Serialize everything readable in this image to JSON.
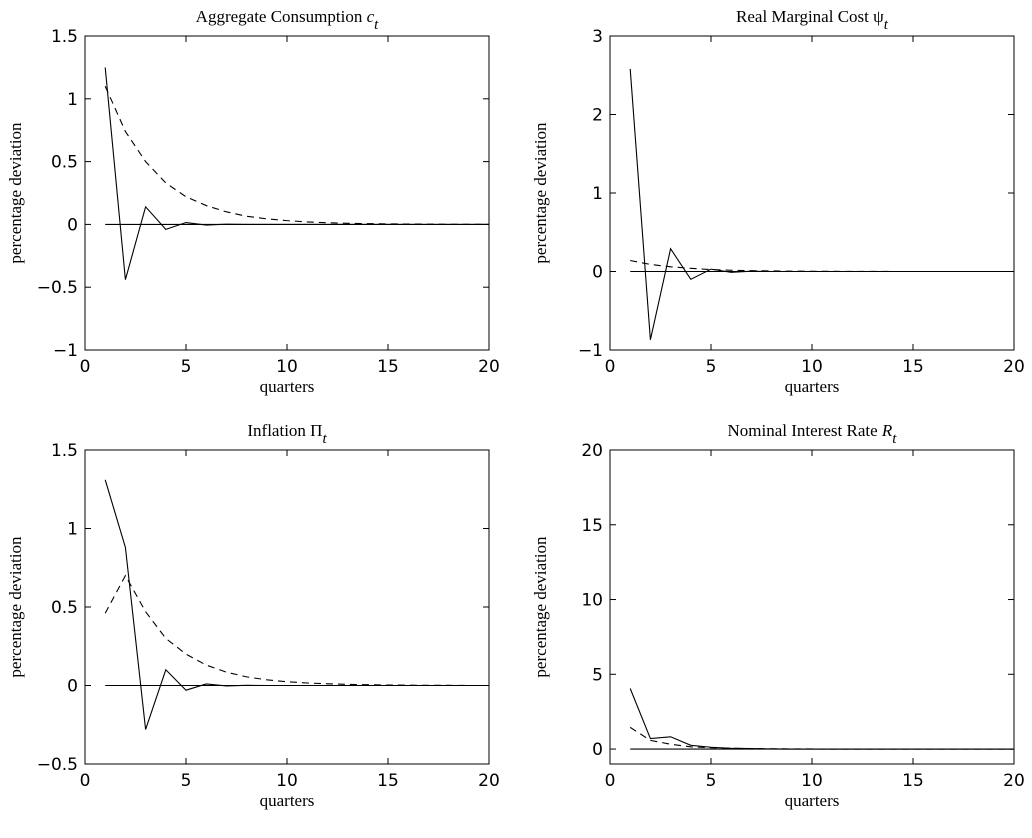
{
  "chart_data": [
    {
      "type": "line",
      "title": "Aggregate Consumption",
      "title_symbol": "c",
      "title_symbol_italic": true,
      "title_subscript": "t",
      "xlabel": "quarters",
      "ylabel": "percentage deviation",
      "xlim": [
        0,
        20
      ],
      "ylim": [
        -1,
        1.5
      ],
      "xticks": [
        "0",
        "5",
        "10",
        "15",
        "20"
      ],
      "yticks": [
        "−1",
        "−0.5",
        "0",
        "0.5",
        "1",
        "1.5"
      ],
      "grid": false,
      "x": [
        1,
        2,
        3,
        4,
        5,
        6,
        7,
        8,
        9,
        10,
        11,
        12,
        13,
        14,
        15,
        16,
        17,
        18,
        19,
        20
      ],
      "series": [
        {
          "style": "solid",
          "values": [
            1.25,
            -0.44,
            0.14,
            -0.04,
            0.015,
            -0.005,
            0.002,
            0,
            0,
            0,
            0,
            0,
            0,
            0,
            0,
            0,
            0,
            0,
            0,
            0
          ]
        },
        {
          "style": "dashed",
          "values": [
            1.1,
            0.74,
            0.5,
            0.33,
            0.22,
            0.15,
            0.1,
            0.065,
            0.044,
            0.03,
            0.02,
            0.013,
            0.009,
            0.006,
            0.004,
            0.003,
            0.002,
            0.001,
            0.001,
            0
          ]
        },
        {
          "style": "solid",
          "values": [
            0,
            0,
            0,
            0,
            0,
            0,
            0,
            0,
            0,
            0,
            0,
            0,
            0,
            0,
            0,
            0,
            0,
            0,
            0,
            0
          ]
        }
      ]
    },
    {
      "type": "line",
      "title": "Real Marginal Cost",
      "title_symbol": "ψ",
      "title_symbol_italic": false,
      "title_subscript": "t",
      "xlabel": "quarters",
      "ylabel": "percentage deviation",
      "xlim": [
        0,
        20
      ],
      "ylim": [
        -1,
        3
      ],
      "xticks": [
        "0",
        "5",
        "10",
        "15",
        "20"
      ],
      "yticks": [
        "−1",
        "0",
        "1",
        "2",
        "3"
      ],
      "grid": false,
      "x": [
        1,
        2,
        3,
        4,
        5,
        6,
        7,
        8,
        9,
        10,
        11,
        12,
        13,
        14,
        15,
        16,
        17,
        18,
        19,
        20
      ],
      "series": [
        {
          "style": "solid",
          "values": [
            2.58,
            -0.87,
            0.29,
            -0.1,
            0.03,
            -0.01,
            0.004,
            0,
            0,
            0,
            0,
            0,
            0,
            0,
            0,
            0,
            0,
            0,
            0,
            0
          ]
        },
        {
          "style": "dashed",
          "values": [
            0.14,
            0.09,
            0.06,
            0.04,
            0.025,
            0.016,
            0.01,
            0.007,
            0.004,
            0.003,
            0.002,
            0.001,
            0.001,
            0,
            0,
            0,
            0,
            0,
            0,
            0
          ]
        },
        {
          "style": "solid",
          "values": [
            0,
            0,
            0,
            0,
            0,
            0,
            0,
            0,
            0,
            0,
            0,
            0,
            0,
            0,
            0,
            0,
            0,
            0,
            0,
            0
          ]
        }
      ]
    },
    {
      "type": "line",
      "title": "Inflation",
      "title_symbol": "Π",
      "title_symbol_italic": false,
      "title_subscript": "t",
      "xlabel": "quarters",
      "ylabel": "percentage deviation",
      "xlim": [
        0,
        20
      ],
      "ylim": [
        -0.5,
        1.5
      ],
      "xticks": [
        "0",
        "5",
        "10",
        "15",
        "20"
      ],
      "yticks": [
        "−0.5",
        "0",
        "0.5",
        "1",
        "1.5"
      ],
      "grid": false,
      "x": [
        1,
        2,
        3,
        4,
        5,
        6,
        7,
        8,
        9,
        10,
        11,
        12,
        13,
        14,
        15,
        16,
        17,
        18,
        19,
        20
      ],
      "series": [
        {
          "style": "solid",
          "values": [
            1.31,
            0.88,
            -0.28,
            0.1,
            -0.03,
            0.01,
            -0.003,
            0.001,
            0,
            0,
            0,
            0,
            0,
            0,
            0,
            0,
            0,
            0,
            0,
            0
          ]
        },
        {
          "style": "dashed",
          "values": [
            0.46,
            0.7,
            0.47,
            0.3,
            0.2,
            0.13,
            0.085,
            0.055,
            0.036,
            0.024,
            0.016,
            0.011,
            0.007,
            0.005,
            0.003,
            0.002,
            0.001,
            0.001,
            0,
            0
          ]
        },
        {
          "style": "solid",
          "values": [
            0,
            0,
            0,
            0,
            0,
            0,
            0,
            0,
            0,
            0,
            0,
            0,
            0,
            0,
            0,
            0,
            0,
            0,
            0,
            0
          ]
        }
      ]
    },
    {
      "type": "line",
      "title": "Nominal Interest Rate",
      "title_symbol": "R",
      "title_symbol_italic": true,
      "title_subscript": "t",
      "xlabel": "quarters",
      "ylabel": "percentage deviation",
      "xlim": [
        0,
        20
      ],
      "ylim": [
        -1,
        20
      ],
      "xticks": [
        "0",
        "5",
        "10",
        "15",
        "20"
      ],
      "yticks": [
        "0",
        "5",
        "10",
        "15",
        "20"
      ],
      "grid": false,
      "x": [
        1,
        2,
        3,
        4,
        5,
        6,
        7,
        8,
        9,
        10,
        11,
        12,
        13,
        14,
        15,
        16,
        17,
        18,
        19,
        20
      ],
      "series": [
        {
          "style": "solid",
          "values": [
            4.05,
            0.7,
            0.82,
            0.25,
            0.12,
            0.05,
            0.03,
            0.01,
            0,
            0,
            0,
            0,
            0,
            0,
            0,
            0,
            0,
            0,
            0,
            0
          ]
        },
        {
          "style": "dashed",
          "values": [
            1.45,
            0.58,
            0.32,
            0.15,
            0.09,
            0.05,
            0.03,
            0.015,
            0.01,
            0.005,
            0,
            0,
            0,
            0,
            0,
            0,
            0,
            0,
            0,
            0
          ]
        },
        {
          "style": "solid",
          "values": [
            0,
            0,
            0,
            0,
            0,
            0,
            0,
            0,
            0,
            0,
            0,
            0,
            0,
            0,
            0,
            0,
            0,
            0,
            0,
            0
          ]
        }
      ]
    }
  ]
}
